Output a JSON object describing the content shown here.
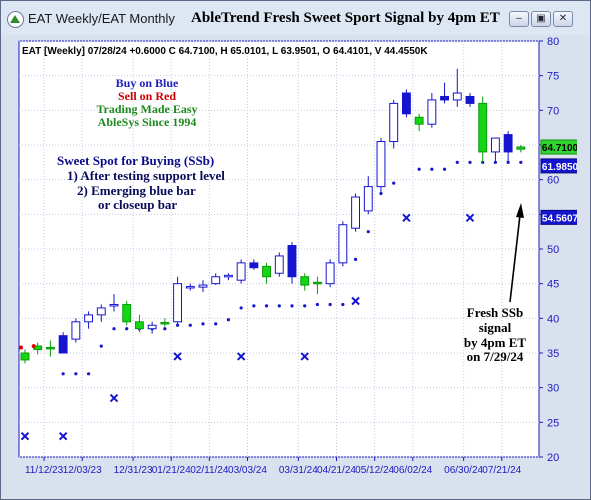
{
  "window": {
    "title": "EAT Weekly/EAT Monthly",
    "chart_title": "AbleTrend Fresh Sweet Sport Signal by 4pm ET",
    "minimize_glyph": "–",
    "restore_glyph": "▣",
    "close_glyph": "✕"
  },
  "header_text": "EAT [Weekly] 07/28/24 +0.6000 C 64.7100, H 65.0101, L 63.9501, O 64.4101, V 44.4550K",
  "legend_lines": [
    {
      "text": "Buy on Blue",
      "color": "#1f1fbf"
    },
    {
      "text": "Sell on Red",
      "color": "#d00000"
    },
    {
      "text": "Trading Made Easy",
      "color": "#1e8a1e"
    },
    {
      "text": "AbleSys Since 1994",
      "color": "#1e8a1e"
    }
  ],
  "ssb_lines": [
    "Sweet Spot for Buying (SSb)",
    "1) After testing support level",
    "2) Emerging blue bar",
    "or closeup bar"
  ],
  "callout_lines": [
    "Fresh SSb",
    "signal",
    "by 4pm ET",
    "on 7/29/24"
  ],
  "colors": {
    "blue": "#1515d0",
    "green": "#14d614",
    "red": "#e00000",
    "axis": "#1c1cc0",
    "grid": "#c8cbe8",
    "price_label_bg": "#2ed52e"
  },
  "chart_data": {
    "type": "candlestick",
    "ylim": [
      20,
      80
    ],
    "y_ticks": [
      20,
      25,
      30,
      35,
      40,
      45,
      50,
      55,
      60,
      65,
      70,
      75,
      80
    ],
    "x_ticks": [
      "11/12/23",
      "12/03/23",
      "12/31/23",
      "01/21/24",
      "02/11/24",
      "03/03/24",
      "03/31/24",
      "04/21/24",
      "05/12/24",
      "06/02/24",
      "06/30/24",
      "07/21/24"
    ],
    "x_tick_positions": [
      1.5,
      4.5,
      8.5,
      11.5,
      14.5,
      17.5,
      21.5,
      24.5,
      27.5,
      30.5,
      34.5,
      37.5
    ],
    "bars": [
      {
        "o": 34.0,
        "h": 35.5,
        "l": 33.5,
        "c": 35.0,
        "color": "green"
      },
      {
        "o": 35.5,
        "h": 36.5,
        "l": 34.8,
        "c": 36.0,
        "color": "green"
      },
      {
        "o": 35.8,
        "h": 36.8,
        "l": 34.5,
        "c": 35.8,
        "color": "green"
      },
      {
        "o": 35.0,
        "h": 38.0,
        "l": 35.0,
        "c": 37.5,
        "color": "blue"
      },
      {
        "o": 37.0,
        "h": 40.0,
        "l": 36.5,
        "c": 39.5,
        "color": "open"
      },
      {
        "o": 39.5,
        "h": 41.0,
        "l": 38.5,
        "c": 40.5,
        "color": "open"
      },
      {
        "o": 40.5,
        "h": 42.0,
        "l": 39.5,
        "c": 41.5,
        "color": "open"
      },
      {
        "o": 41.8,
        "h": 43.5,
        "l": 41.0,
        "c": 42.0,
        "color": "open"
      },
      {
        "o": 42.0,
        "h": 42.5,
        "l": 39.0,
        "c": 39.5,
        "color": "green"
      },
      {
        "o": 39.5,
        "h": 40.5,
        "l": 38.0,
        "c": 38.5,
        "color": "green"
      },
      {
        "o": 38.5,
        "h": 39.5,
        "l": 37.8,
        "c": 39.0,
        "color": "open"
      },
      {
        "o": 39.2,
        "h": 40.0,
        "l": 38.8,
        "c": 39.4,
        "color": "green"
      },
      {
        "o": 39.5,
        "h": 46.0,
        "l": 39.0,
        "c": 45.0,
        "color": "open"
      },
      {
        "o": 44.5,
        "h": 45.0,
        "l": 44.0,
        "c": 44.6,
        "color": "open"
      },
      {
        "o": 44.5,
        "h": 45.5,
        "l": 43.8,
        "c": 44.8,
        "color": "open"
      },
      {
        "o": 45.0,
        "h": 46.5,
        "l": 44.8,
        "c": 46.0,
        "color": "open"
      },
      {
        "o": 46.0,
        "h": 46.5,
        "l": 45.5,
        "c": 46.2,
        "color": "open"
      },
      {
        "o": 45.5,
        "h": 48.5,
        "l": 45.0,
        "c": 48.0,
        "color": "open"
      },
      {
        "o": 48.0,
        "h": 48.5,
        "l": 47.0,
        "c": 47.3,
        "color": "blue"
      },
      {
        "o": 47.5,
        "h": 48.0,
        "l": 45.0,
        "c": 46.0,
        "color": "green"
      },
      {
        "o": 46.5,
        "h": 49.5,
        "l": 46.0,
        "c": 49.0,
        "color": "open"
      },
      {
        "o": 50.5,
        "h": 51.0,
        "l": 45.0,
        "c": 46.0,
        "color": "blue"
      },
      {
        "o": 46.0,
        "h": 46.5,
        "l": 44.0,
        "c": 44.8,
        "color": "green"
      },
      {
        "o": 45.0,
        "h": 46.0,
        "l": 43.5,
        "c": 45.2,
        "color": "green"
      },
      {
        "o": 45.0,
        "h": 48.5,
        "l": 44.5,
        "c": 48.0,
        "color": "open"
      },
      {
        "o": 48.0,
        "h": 54.0,
        "l": 47.5,
        "c": 53.5,
        "color": "open"
      },
      {
        "o": 53.0,
        "h": 58.0,
        "l": 52.5,
        "c": 57.5,
        "color": "open"
      },
      {
        "o": 55.5,
        "h": 60.5,
        "l": 55.0,
        "c": 59.0,
        "color": "open"
      },
      {
        "o": 59.0,
        "h": 66.0,
        "l": 58.0,
        "c": 65.5,
        "color": "open"
      },
      {
        "o": 65.5,
        "h": 71.5,
        "l": 64.5,
        "c": 71.0,
        "color": "open"
      },
      {
        "o": 72.5,
        "h": 73.0,
        "l": 69.0,
        "c": 69.5,
        "color": "blue"
      },
      {
        "o": 69.0,
        "h": 69.5,
        "l": 67.0,
        "c": 68.0,
        "color": "green"
      },
      {
        "o": 68.0,
        "h": 72.5,
        "l": 67.5,
        "c": 71.5,
        "color": "open"
      },
      {
        "o": 72.0,
        "h": 74.0,
        "l": 71.0,
        "c": 71.5,
        "color": "blue"
      },
      {
        "o": 71.5,
        "h": 76.0,
        "l": 70.5,
        "c": 72.5,
        "color": "open"
      },
      {
        "o": 71.0,
        "h": 72.5,
        "l": 70.5,
        "c": 72.0,
        "color": "blue"
      },
      {
        "o": 71.0,
        "h": 72.0,
        "l": 62.5,
        "c": 64.0,
        "color": "green"
      },
      {
        "o": 64.0,
        "h": 66.0,
        "l": 62.5,
        "c": 66.0,
        "color": "open"
      },
      {
        "o": 66.5,
        "h": 67.0,
        "l": 62.5,
        "c": 64.0,
        "color": "blue"
      },
      {
        "o": 64.4,
        "h": 65.0,
        "l": 63.95,
        "c": 64.71,
        "color": "green"
      }
    ],
    "support_dots": [
      {
        "i": 3,
        "v": 32.0
      },
      {
        "i": 4,
        "v": 32.0
      },
      {
        "i": 5,
        "v": 32.0
      },
      {
        "i": 6,
        "v": 36.0
      },
      {
        "i": 7,
        "v": 38.5
      },
      {
        "i": 8,
        "v": 38.5
      },
      {
        "i": 9,
        "v": 38.5
      },
      {
        "i": 10,
        "v": 38.5
      },
      {
        "i": 11,
        "v": 38.5
      },
      {
        "i": 12,
        "v": 39.0
      },
      {
        "i": 13,
        "v": 39.0
      },
      {
        "i": 14,
        "v": 39.2
      },
      {
        "i": 15,
        "v": 39.2
      },
      {
        "i": 16,
        "v": 39.8
      },
      {
        "i": 17,
        "v": 41.5
      },
      {
        "i": 18,
        "v": 41.8
      },
      {
        "i": 19,
        "v": 41.8
      },
      {
        "i": 20,
        "v": 41.8
      },
      {
        "i": 21,
        "v": 41.8
      },
      {
        "i": 22,
        "v": 41.8
      },
      {
        "i": 23,
        "v": 42.0
      },
      {
        "i": 24,
        "v": 42.0
      },
      {
        "i": 25,
        "v": 42.0
      },
      {
        "i": 26,
        "v": 48.5
      },
      {
        "i": 27,
        "v": 52.5
      },
      {
        "i": 28,
        "v": 58.0
      },
      {
        "i": 29,
        "v": 59.5
      },
      {
        "i": 31,
        "v": 61.5
      },
      {
        "i": 32,
        "v": 61.5
      },
      {
        "i": 33,
        "v": 61.5
      },
      {
        "i": 34,
        "v": 62.5
      },
      {
        "i": 35,
        "v": 62.5
      },
      {
        "i": 36,
        "v": 62.5
      },
      {
        "i": 37,
        "v": 62.5
      },
      {
        "i": 38,
        "v": 62.5
      },
      {
        "i": 39,
        "v": 62.5
      }
    ],
    "x_marks": [
      {
        "i": 0,
        "v": 23.0
      },
      {
        "i": 3,
        "v": 23.0
      },
      {
        "i": 7,
        "v": 28.5
      },
      {
        "i": 12,
        "v": 34.5
      },
      {
        "i": 17,
        "v": 34.5
      },
      {
        "i": 22,
        "v": 34.5
      },
      {
        "i": 26,
        "v": 42.5
      },
      {
        "i": 30,
        "v": 54.5
      },
      {
        "i": 35,
        "v": 54.5
      }
    ],
    "red_dots": [
      {
        "i": 0,
        "v": 35.8
      },
      {
        "i": 1,
        "v": 36.0
      }
    ],
    "price_labels": [
      {
        "v": 64.71,
        "text": "64.7100",
        "style": "green"
      },
      {
        "v": 61.985,
        "text": "61.9850",
        "style": "blue"
      },
      {
        "v": 54.5607,
        "text": "54.5607",
        "style": "blue"
      }
    ]
  }
}
